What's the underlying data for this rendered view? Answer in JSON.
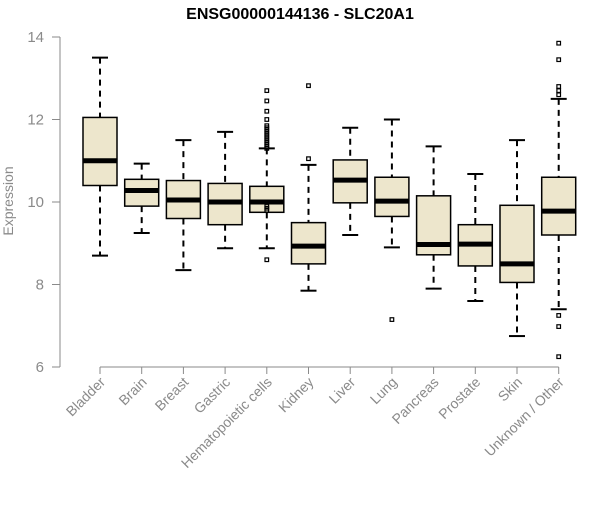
{
  "chart_data": {
    "type": "box",
    "title": "ENSG00000144136 - SLC20A1",
    "xlabel": "",
    "ylabel": "Expression",
    "ylim": [
      6,
      14
    ],
    "yticks": [
      6,
      8,
      10,
      12,
      14
    ],
    "grid": false,
    "box_fill": "#ede6cc",
    "stroke_color": "#000000",
    "axis_color": "#8a8a8a",
    "categories": [
      "Bladder",
      "Brain",
      "Breast",
      "Gastric",
      "Hematopoietic cells",
      "Kidney",
      "Liver",
      "Lung",
      "Pancreas",
      "Prostate",
      "Skin",
      "Unknown / Other"
    ],
    "boxes": [
      {
        "name": "Bladder",
        "whisker_low": 8.7,
        "q1": 10.4,
        "median": 11.0,
        "q3": 12.05,
        "whisker_high": 13.5,
        "outliers": []
      },
      {
        "name": "Brain",
        "whisker_low": 9.25,
        "q1": 9.9,
        "median": 10.28,
        "q3": 10.55,
        "whisker_high": 10.93,
        "outliers": []
      },
      {
        "name": "Breast",
        "whisker_low": 8.35,
        "q1": 9.6,
        "median": 10.05,
        "q3": 10.52,
        "whisker_high": 11.5,
        "outliers": []
      },
      {
        "name": "Gastric",
        "whisker_low": 8.88,
        "q1": 9.45,
        "median": 10.0,
        "q3": 10.45,
        "whisker_high": 11.7,
        "outliers": []
      },
      {
        "name": "Hematopoietic cells",
        "whisker_low": 8.88,
        "q1": 9.75,
        "median": 10.0,
        "q3": 10.38,
        "whisker_high": 11.3,
        "outliers": [
          8.6,
          9.8,
          9.85,
          9.9,
          11.3,
          11.35,
          11.4,
          11.45,
          11.5,
          11.55,
          11.6,
          11.65,
          11.7,
          11.75,
          11.8,
          11.85,
          12.0,
          12.2,
          12.45,
          12.7
        ]
      },
      {
        "name": "Kidney",
        "whisker_low": 7.85,
        "q1": 8.5,
        "median": 8.93,
        "q3": 9.5,
        "whisker_high": 10.9,
        "outliers": [
          11.05,
          12.82
        ]
      },
      {
        "name": "Liver",
        "whisker_low": 9.2,
        "q1": 9.98,
        "median": 10.53,
        "q3": 11.02,
        "whisker_high": 11.8,
        "outliers": []
      },
      {
        "name": "Lung",
        "whisker_low": 8.9,
        "q1": 9.65,
        "median": 10.02,
        "q3": 10.6,
        "whisker_high": 12.0,
        "outliers": [
          7.15
        ]
      },
      {
        "name": "Pancreas",
        "whisker_low": 7.9,
        "q1": 8.72,
        "median": 8.97,
        "q3": 10.15,
        "whisker_high": 11.35,
        "outliers": []
      },
      {
        "name": "Prostate",
        "whisker_low": 7.6,
        "q1": 8.45,
        "median": 8.98,
        "q3": 9.45,
        "whisker_high": 10.68,
        "outliers": []
      },
      {
        "name": "Skin",
        "whisker_low": 6.75,
        "q1": 8.05,
        "median": 8.5,
        "q3": 9.92,
        "whisker_high": 11.5,
        "outliers": []
      },
      {
        "name": "Unknown / Other",
        "whisker_low": 7.4,
        "q1": 9.2,
        "median": 9.78,
        "q3": 10.6,
        "whisker_high": 12.5,
        "outliers": [
          6.25,
          6.98,
          7.25,
          12.6,
          12.7,
          12.8,
          13.45,
          13.85
        ]
      }
    ]
  }
}
